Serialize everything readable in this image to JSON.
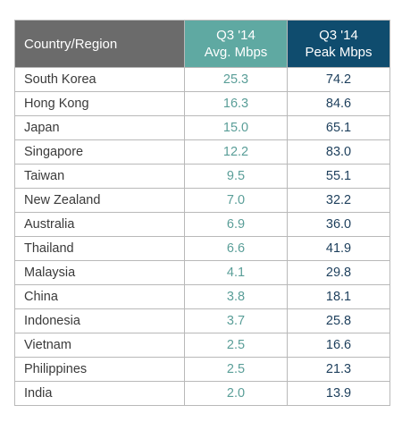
{
  "colors": {
    "country_header_bg": "#6b6b6b",
    "avg_header_bg": "#5fa9a2",
    "peak_header_bg": "#0f4c6e",
    "avg_text": "#5a9e98",
    "peak_text": "#1d3f5c",
    "grid_line": "#b9b9b9"
  },
  "header": {
    "country": "Country/Region",
    "avg_line1": "Q3 '14",
    "avg_line2": "Avg. Mbps",
    "peak_line1": "Q3 '14",
    "peak_line2": "Peak Mbps"
  },
  "rows": [
    {
      "country": "South Korea",
      "avg": "25.3",
      "peak": "74.2"
    },
    {
      "country": "Hong Kong",
      "avg": "16.3",
      "peak": "84.6"
    },
    {
      "country": "Japan",
      "avg": "15.0",
      "peak": "65.1"
    },
    {
      "country": "Singapore",
      "avg": "12.2",
      "peak": "83.0"
    },
    {
      "country": "Taiwan",
      "avg": "9.5",
      "peak": "55.1"
    },
    {
      "country": "New Zealand",
      "avg": "7.0",
      "peak": "32.2"
    },
    {
      "country": "Australia",
      "avg": "6.9",
      "peak": "36.0"
    },
    {
      "country": "Thailand",
      "avg": "6.6",
      "peak": "41.9"
    },
    {
      "country": "Malaysia",
      "avg": "4.1",
      "peak": "29.8"
    },
    {
      "country": "China",
      "avg": "3.8",
      "peak": "18.1"
    },
    {
      "country": "Indonesia",
      "avg": "3.7",
      "peak": "25.8"
    },
    {
      "country": "Vietnam",
      "avg": "2.5",
      "peak": "16.6"
    },
    {
      "country": "Philippines",
      "avg": "2.5",
      "peak": "21.3"
    },
    {
      "country": "India",
      "avg": "2.0",
      "peak": "13.9"
    }
  ]
}
